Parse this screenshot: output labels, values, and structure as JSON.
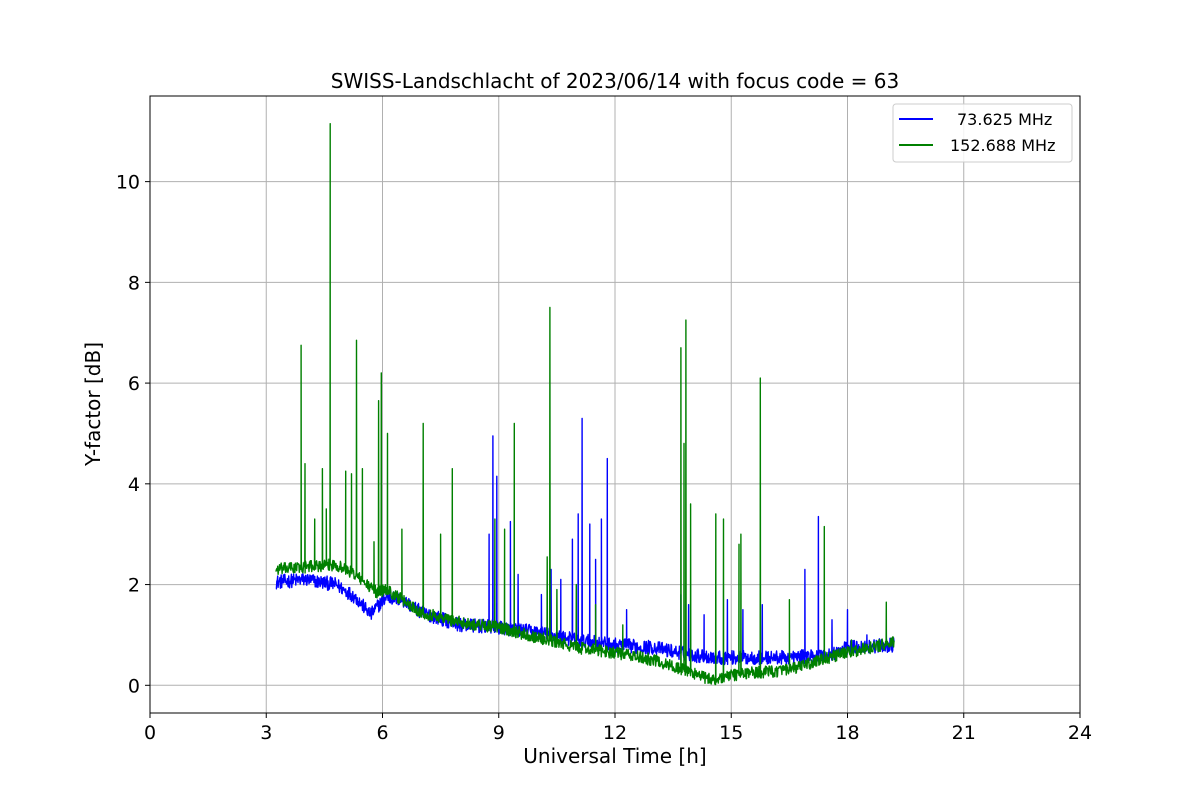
{
  "chart_data": {
    "type": "line",
    "title": "SWISS-Landschlacht of 2023/06/14 with focus code = 63",
    "xlabel": "Universal Time [h]",
    "ylabel": "Y-factor [dB]",
    "xlim": [
      0,
      24
    ],
    "ylim": [
      -0.55,
      11.7
    ],
    "xticks": [
      0,
      3,
      6,
      9,
      12,
      15,
      18,
      21,
      24
    ],
    "yticks": [
      0,
      2,
      4,
      6,
      8,
      10
    ],
    "xtick_labels": [
      "0",
      "3",
      "6",
      "9",
      "12",
      "15",
      "18",
      "21",
      "24"
    ],
    "ytick_labels": [
      "0",
      "2",
      "4",
      "6",
      "8",
      "10"
    ],
    "grid": true,
    "legend_position": "top-right",
    "series": [
      {
        "name": "73.625 MHz",
        "color": "#0000ff",
        "baseline": [
          [
            3.25,
            2.05
          ],
          [
            4.0,
            2.1
          ],
          [
            4.8,
            2.0
          ],
          [
            5.3,
            1.75
          ],
          [
            5.7,
            1.4
          ],
          [
            5.85,
            1.55
          ],
          [
            6.1,
            1.75
          ],
          [
            6.5,
            1.7
          ],
          [
            7.0,
            1.45
          ],
          [
            8.0,
            1.2
          ],
          [
            9.0,
            1.15
          ],
          [
            10.0,
            1.05
          ],
          [
            11.0,
            0.9
          ],
          [
            12.0,
            0.8
          ],
          [
            13.0,
            0.75
          ],
          [
            14.0,
            0.6
          ],
          [
            14.7,
            0.55
          ],
          [
            15.5,
            0.55
          ],
          [
            16.5,
            0.55
          ],
          [
            17.5,
            0.6
          ],
          [
            18.0,
            0.75
          ],
          [
            19.2,
            0.8
          ]
        ],
        "spikes": [
          [
            8.75,
            3.0
          ],
          [
            8.85,
            4.95
          ],
          [
            8.95,
            4.15
          ],
          [
            9.3,
            3.25
          ],
          [
            9.5,
            2.2
          ],
          [
            10.1,
            1.8
          ],
          [
            10.35,
            2.3
          ],
          [
            10.6,
            2.1
          ],
          [
            10.9,
            2.9
          ],
          [
            11.05,
            3.4
          ],
          [
            11.15,
            5.3
          ],
          [
            11.35,
            3.2
          ],
          [
            11.5,
            2.5
          ],
          [
            11.65,
            3.3
          ],
          [
            11.8,
            4.5
          ],
          [
            12.3,
            1.5
          ],
          [
            13.7,
            1.8
          ],
          [
            13.9,
            1.6
          ],
          [
            14.3,
            1.4
          ],
          [
            14.9,
            1.7
          ],
          [
            15.3,
            1.5
          ],
          [
            15.8,
            1.6
          ],
          [
            16.9,
            2.3
          ],
          [
            17.25,
            3.35
          ],
          [
            17.6,
            1.3
          ],
          [
            18.0,
            1.5
          ],
          [
            18.5,
            1.0
          ],
          [
            19.0,
            1.1
          ]
        ]
      },
      {
        "name": "152.688 MHz",
        "color": "#008000",
        "baseline": [
          [
            3.25,
            2.3
          ],
          [
            4.0,
            2.35
          ],
          [
            4.8,
            2.4
          ],
          [
            5.3,
            2.2
          ],
          [
            5.6,
            2.0
          ],
          [
            5.85,
            1.85
          ],
          [
            6.1,
            1.9
          ],
          [
            6.5,
            1.7
          ],
          [
            7.0,
            1.45
          ],
          [
            8.0,
            1.25
          ],
          [
            9.0,
            1.15
          ],
          [
            10.0,
            0.95
          ],
          [
            11.0,
            0.75
          ],
          [
            12.0,
            0.65
          ],
          [
            13.0,
            0.5
          ],
          [
            14.0,
            0.25
          ],
          [
            14.5,
            0.1
          ],
          [
            15.0,
            0.2
          ],
          [
            15.5,
            0.25
          ],
          [
            16.5,
            0.3
          ],
          [
            17.5,
            0.55
          ],
          [
            18.0,
            0.65
          ],
          [
            19.2,
            0.85
          ]
        ],
        "spikes": [
          [
            3.9,
            6.75
          ],
          [
            4.0,
            4.4
          ],
          [
            4.25,
            3.3
          ],
          [
            4.45,
            4.3
          ],
          [
            4.55,
            3.5
          ],
          [
            4.65,
            11.15
          ],
          [
            5.05,
            4.25
          ],
          [
            5.2,
            4.2
          ],
          [
            5.33,
            6.85
          ],
          [
            5.48,
            4.3
          ],
          [
            5.78,
            2.85
          ],
          [
            5.9,
            5.65
          ],
          [
            5.97,
            6.2
          ],
          [
            6.13,
            5.0
          ],
          [
            6.5,
            3.1
          ],
          [
            7.05,
            5.2
          ],
          [
            7.5,
            3.0
          ],
          [
            7.8,
            4.3
          ],
          [
            8.9,
            3.3
          ],
          [
            9.15,
            3.1
          ],
          [
            9.4,
            5.2
          ],
          [
            10.25,
            2.55
          ],
          [
            10.32,
            7.5
          ],
          [
            10.5,
            1.9
          ],
          [
            11.0,
            2.0
          ],
          [
            11.5,
            1.6
          ],
          [
            12.2,
            1.2
          ],
          [
            13.7,
            6.7
          ],
          [
            13.78,
            4.8
          ],
          [
            13.83,
            7.25
          ],
          [
            13.95,
            3.6
          ],
          [
            14.6,
            3.4
          ],
          [
            14.8,
            3.3
          ],
          [
            15.2,
            2.8
          ],
          [
            15.25,
            3.0
          ],
          [
            15.75,
            6.1
          ],
          [
            16.5,
            1.7
          ],
          [
            17.4,
            3.15
          ],
          [
            18.1,
            0.9
          ],
          [
            19.0,
            1.65
          ]
        ]
      }
    ]
  }
}
